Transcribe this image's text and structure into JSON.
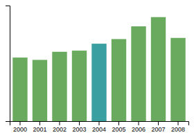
{
  "chart_data": {
    "type": "bar",
    "categories": [
      "2000",
      "2001",
      "2002",
      "2003",
      "2004",
      "2005",
      "2006",
      "2007",
      "2008"
    ],
    "values": [
      55,
      53,
      60,
      61,
      67,
      71,
      82,
      90,
      72
    ],
    "colors": [
      "#6aaa5e",
      "#6aaa5e",
      "#6aaa5e",
      "#6aaa5e",
      "#3a9fa0",
      "#6aaa5e",
      "#6aaa5e",
      "#6aaa5e",
      "#6aaa5e"
    ],
    "ylim": [
      0,
      100
    ],
    "grid": false,
    "tick_labels": "x"
  }
}
